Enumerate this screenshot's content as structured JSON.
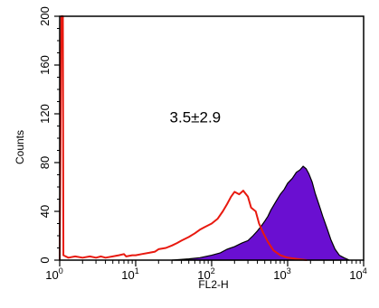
{
  "chart_data": {
    "type": "area",
    "x_scale": "log",
    "xlim": [
      1,
      10000
    ],
    "ylim": [
      0,
      200
    ],
    "xlabel": "FL2-H",
    "ylabel": "Counts",
    "x_ticks": [
      {
        "base": "10",
        "exp": "0",
        "value": 1
      },
      {
        "base": "10",
        "exp": "1",
        "value": 10
      },
      {
        "base": "10",
        "exp": "2",
        "value": 100
      },
      {
        "base": "10",
        "exp": "3",
        "value": 1000
      },
      {
        "base": "10",
        "exp": "4",
        "value": 10000
      }
    ],
    "y_ticks": [
      "0",
      "40",
      "80",
      "120",
      "160",
      "200"
    ],
    "annotation": "3.5±2.9",
    "colors": {
      "control": "#e8190f",
      "stained_fill": "#6a0fd1",
      "stained_edge": "#000000"
    },
    "series": [
      {
        "style": "outline",
        "color": "#e8190f",
        "points": [
          [
            1.0,
            0
          ],
          [
            1.05,
            200
          ],
          [
            1.1,
            200
          ],
          [
            1.12,
            4
          ],
          [
            1.3,
            2
          ],
          [
            1.6,
            3
          ],
          [
            2,
            2
          ],
          [
            2.5,
            3
          ],
          [
            3,
            2
          ],
          [
            3.5,
            3
          ],
          [
            4,
            2
          ],
          [
            5,
            3
          ],
          [
            6,
            4
          ],
          [
            7,
            5
          ],
          [
            7.5,
            3
          ],
          [
            9,
            4
          ],
          [
            10,
            4
          ],
          [
            12,
            5
          ],
          [
            15,
            6
          ],
          [
            18,
            7
          ],
          [
            20,
            9
          ],
          [
            25,
            10
          ],
          [
            30,
            12
          ],
          [
            35,
            14
          ],
          [
            40,
            16
          ],
          [
            50,
            19
          ],
          [
            60,
            22
          ],
          [
            70,
            25
          ],
          [
            80,
            27
          ],
          [
            100,
            30
          ],
          [
            120,
            34
          ],
          [
            140,
            40
          ],
          [
            160,
            46
          ],
          [
            180,
            52
          ],
          [
            200,
            56
          ],
          [
            230,
            54
          ],
          [
            260,
            57
          ],
          [
            300,
            52
          ],
          [
            330,
            43
          ],
          [
            380,
            40
          ],
          [
            420,
            30
          ],
          [
            480,
            22
          ],
          [
            550,
            15
          ],
          [
            650,
            8
          ],
          [
            800,
            4
          ],
          [
            1000,
            2
          ],
          [
            1300,
            1
          ],
          [
            1800,
            0
          ]
        ]
      },
      {
        "style": "filled",
        "fill": "#6a0fd1",
        "edge": "#000000",
        "points": [
          [
            30,
            0
          ],
          [
            50,
            1
          ],
          [
            70,
            2
          ],
          [
            100,
            4
          ],
          [
            130,
            6
          ],
          [
            160,
            9
          ],
          [
            200,
            11
          ],
          [
            250,
            14
          ],
          [
            300,
            16
          ],
          [
            350,
            20
          ],
          [
            400,
            24
          ],
          [
            450,
            28
          ],
          [
            500,
            32
          ],
          [
            550,
            36
          ],
          [
            600,
            41
          ],
          [
            700,
            48
          ],
          [
            800,
            54
          ],
          [
            900,
            58
          ],
          [
            1000,
            63
          ],
          [
            1150,
            67
          ],
          [
            1300,
            72
          ],
          [
            1450,
            74
          ],
          [
            1600,
            77
          ],
          [
            1750,
            75
          ],
          [
            1900,
            71
          ],
          [
            2100,
            64
          ],
          [
            2300,
            55
          ],
          [
            2600,
            45
          ],
          [
            2900,
            36
          ],
          [
            3300,
            26
          ],
          [
            3700,
            17
          ],
          [
            4200,
            9
          ],
          [
            4800,
            4
          ],
          [
            5500,
            2
          ],
          [
            6500,
            0
          ]
        ]
      }
    ]
  }
}
